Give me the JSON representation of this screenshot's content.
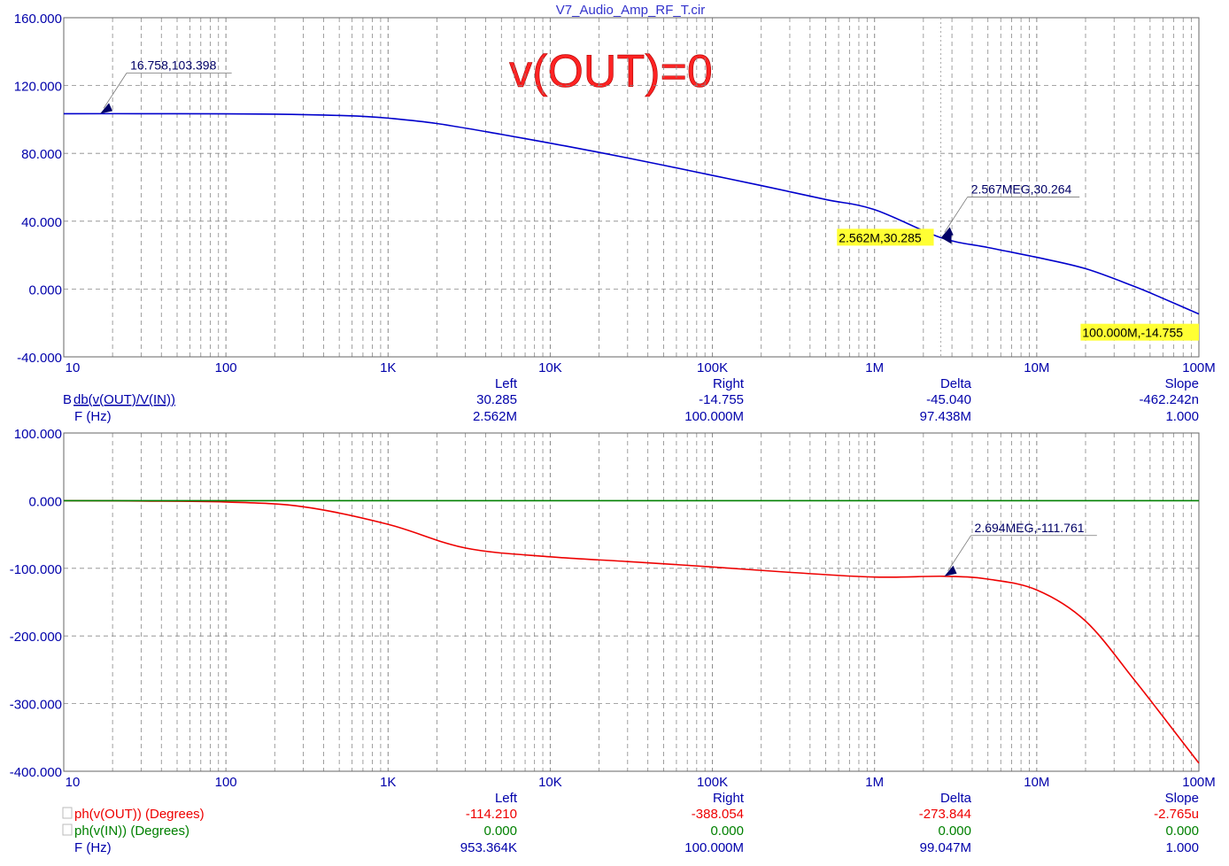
{
  "window_title": "V7_Audio_Amp_RF_T.cir",
  "overlay_text": "v(OUT)=0",
  "colors": {
    "accent_blue": "#0000cc",
    "accent_red": "#ee0000",
    "accent_green": "#008000",
    "marker_bg": "#ffff33",
    "title": "#3333cc",
    "overlay": "#ff2222"
  },
  "x_ticks": [
    "10",
    "100",
    "1K",
    "10K",
    "100K",
    "1M",
    "10M",
    "100M"
  ],
  "table_headers": [
    "Left",
    "Right",
    "Delta",
    "Slope"
  ],
  "chart_data": [
    {
      "type": "line",
      "xscale": "log",
      "xlim": [
        10,
        100000000
      ],
      "ylim": [
        -40,
        160
      ],
      "yticks": [
        "160.000",
        "120.000",
        "80.000",
        "40.000",
        "0.000",
        "-40.000"
      ],
      "grid": true,
      "series": [
        {
          "name": "db(v(OUT)/V(IN))",
          "color": "#0000cc",
          "x": [
            10,
            30,
            100,
            200,
            400,
            700,
            1000,
            2000,
            5000,
            10000,
            20000,
            50000,
            100000,
            200000,
            500000,
            1000000,
            2562000,
            5000000,
            10000000,
            20000000,
            40000000,
            60000000,
            100000000
          ],
          "y": [
            103.4,
            103.4,
            103.3,
            103.1,
            102.6,
            101.8,
            100.8,
            97.6,
            91.2,
            86.0,
            80.6,
            73.0,
            67.0,
            61.0,
            52.8,
            46.8,
            30.3,
            24.5,
            18.7,
            12.0,
            1.5,
            -5.5,
            -14.755
          ]
        }
      ],
      "annotations": [
        {
          "text": "16.758,103.398",
          "x": 16.758,
          "y": 103.398,
          "style": "label"
        },
        {
          "text": "2.567MEG,30.264",
          "x": 2567000,
          "y": 30.264,
          "style": "label"
        },
        {
          "text": "2.562M,30.285",
          "x": 2562000,
          "y": 30.285,
          "style": "highlight"
        },
        {
          "text": "100.000M,-14.755",
          "x": 100000000,
          "y": -14.755,
          "style": "highlight"
        }
      ],
      "cursor_x": 2562000,
      "table": {
        "rows": [
          {
            "label": "db(v(OUT)/V(IN))",
            "marker": "B",
            "values": [
              "30.285",
              "-14.755",
              "-45.040",
              "-462.242n"
            ]
          },
          {
            "label": "F (Hz)",
            "values": [
              "2.562M",
              "100.000M",
              "97.438M",
              "1.000"
            ]
          }
        ]
      }
    },
    {
      "type": "line",
      "xscale": "log",
      "xlim": [
        10,
        100000000
      ],
      "ylim": [
        -400,
        100
      ],
      "yticks": [
        "100.000",
        "0.000",
        "-100.000",
        "-200.000",
        "-300.000",
        "-400.000"
      ],
      "grid": true,
      "series": [
        {
          "name": "ph(v(OUT)) (Degrees)",
          "color": "#ee0000",
          "x": [
            10,
            30,
            100,
            300,
            1000,
            3000,
            10000,
            30000,
            100000,
            300000,
            1000000,
            2694000,
            5000000,
            10000000,
            20000000,
            40000000,
            70000000,
            100000000
          ],
          "y": [
            0,
            -0.5,
            -2,
            -9,
            -35,
            -70,
            -83,
            -90,
            -98,
            -106,
            -113,
            -111.761,
            -116,
            -132,
            -178,
            -265,
            -340,
            -388.054
          ]
        },
        {
          "name": "ph(v(IN)) (Degrees)",
          "color": "#008000",
          "x": [
            10,
            100000000
          ],
          "y": [
            0,
            0
          ]
        }
      ],
      "annotations": [
        {
          "text": "2.694MEG,-111.761",
          "x": 2694000,
          "y": -111.761,
          "style": "label"
        }
      ],
      "table": {
        "rows": [
          {
            "label": "ph(v(OUT)) (Degrees)",
            "color": "#ee0000",
            "values": [
              "-114.210",
              "-388.054",
              "-273.844",
              "-2.765u"
            ]
          },
          {
            "label": "ph(v(IN)) (Degrees)",
            "color": "#008000",
            "values": [
              "0.000",
              "0.000",
              "0.000",
              "0.000"
            ]
          },
          {
            "label": "F (Hz)",
            "values": [
              "953.364K",
              "100.000M",
              "99.047M",
              "1.000"
            ]
          }
        ]
      }
    }
  ]
}
